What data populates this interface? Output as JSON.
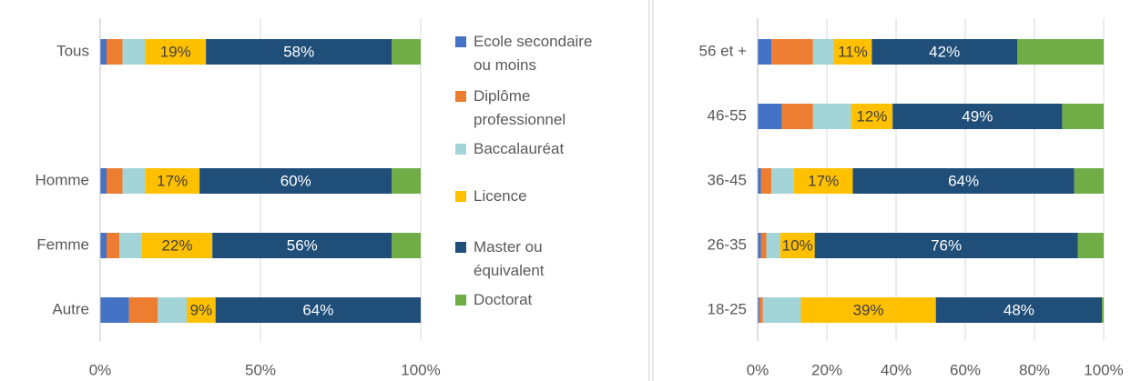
{
  "chart_data": [
    {
      "type": "bar",
      "orientation": "horizontal",
      "stacked": true,
      "categories": [
        "Tous",
        null,
        "Homme",
        "Femme",
        "Autre"
      ],
      "series": [
        {
          "name": "Ecole secondaire ou moins",
          "color": "#4472c4",
          "values": [
            2,
            null,
            2,
            2,
            9
          ]
        },
        {
          "name": "Diplôme professionnel",
          "color": "#ed7d31",
          "values": [
            5,
            null,
            5,
            4,
            9
          ]
        },
        {
          "name": "Baccalauréat",
          "color": "#a3d4d7",
          "values": [
            7,
            null,
            7,
            7,
            9
          ]
        },
        {
          "name": "Licence",
          "color": "#ffc000",
          "values": [
            19,
            null,
            17,
            22,
            9
          ],
          "value_labels": [
            "19%",
            null,
            "17%",
            "22%",
            "9%"
          ]
        },
        {
          "name": "Master ou équivalent",
          "color": "#1f4e79",
          "values": [
            58,
            null,
            60,
            56,
            64
          ],
          "value_labels": [
            "58%",
            null,
            "60%",
            "56%",
            "64%"
          ]
        },
        {
          "name": "Doctorat",
          "color": "#70ad47",
          "values": [
            9,
            null,
            9,
            9,
            0
          ]
        }
      ],
      "xlim": [
        0,
        100
      ],
      "xticks": [
        {
          "value": 0,
          "label": "0%"
        },
        {
          "value": 50,
          "label": "50%"
        },
        {
          "value": 100,
          "label": "100%"
        }
      ],
      "grid": true
    },
    {
      "type": "bar",
      "orientation": "horizontal",
      "stacked": true,
      "categories": [
        "56 et +",
        "46-55",
        "36-45",
        "26-35",
        "18-25"
      ],
      "series": [
        {
          "color": "#4472c4",
          "values": [
            4,
            7,
            1,
            1,
            0.5
          ]
        },
        {
          "color": "#ed7d31",
          "values": [
            12,
            9,
            3,
            1.5,
            1
          ]
        },
        {
          "color": "#a3d4d7",
          "values": [
            6,
            11,
            6.5,
            4,
            11
          ]
        },
        {
          "color": "#ffc000",
          "values": [
            11,
            12,
            17,
            10,
            39
          ],
          "value_labels": [
            "11%",
            "12%",
            "17%",
            "10%",
            "39%"
          ]
        },
        {
          "color": "#1f4e79",
          "values": [
            42,
            49,
            64,
            76,
            48
          ],
          "value_labels": [
            "42%",
            "49%",
            "64%",
            "76%",
            "48%"
          ]
        },
        {
          "color": "#70ad47",
          "values": [
            25,
            12,
            8.5,
            7.5,
            0.5
          ]
        }
      ],
      "xlim": [
        0,
        100
      ],
      "xticks": [
        {
          "value": 0,
          "label": "0%"
        },
        {
          "value": 20,
          "label": "20%"
        },
        {
          "value": 40,
          "label": "40%"
        },
        {
          "value": 60,
          "label": "60%"
        },
        {
          "value": 80,
          "label": "80%"
        },
        {
          "value": 100,
          "label": "100%"
        }
      ],
      "grid": true
    }
  ]
}
